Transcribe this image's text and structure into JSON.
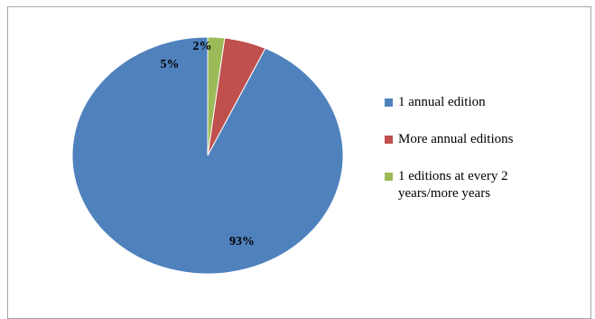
{
  "chart_data": {
    "type": "pie",
    "title": "",
    "legend_position": "right",
    "slices": [
      {
        "label": "1 annual edition",
        "value": 93,
        "data_label": "93%",
        "color": "#4f81bd"
      },
      {
        "label": "More annual editions",
        "value": 5,
        "data_label": "5%",
        "color": "#c0504d"
      },
      {
        "label": "1 editions at every 2\nyears/more years",
        "value": 2,
        "data_label": "2%",
        "color": "#9bbb59"
      }
    ]
  }
}
